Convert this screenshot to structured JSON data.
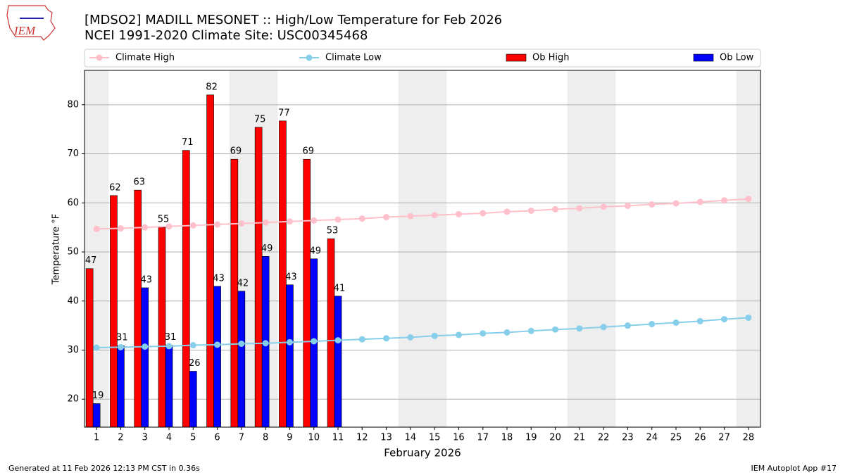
{
  "logo_text": "IEM",
  "footer_left": "Generated at 11 Feb 2026 12:13 PM CST in 0.36s",
  "footer_right": "IEM Autoplot App #17",
  "chart_data": {
    "type": "bar",
    "title": "[MDSO2] MADILL MESONET :: High/Low Temperature for Feb 2026",
    "subtitle": "NCEI 1991-2020 Climate Site: USC00345468",
    "x_label": "February 2026",
    "y_label": "Temperature °F",
    "categories": [
      "1",
      "2",
      "3",
      "4",
      "5",
      "6",
      "7",
      "8",
      "9",
      "10",
      "11",
      "12",
      "13",
      "14",
      "15",
      "16",
      "17",
      "18",
      "19",
      "20",
      "21",
      "22",
      "23",
      "24",
      "25",
      "26",
      "27",
      "28"
    ],
    "shaded_days": [
      "1",
      "7",
      "8",
      "14",
      "15",
      "21",
      "22",
      "28"
    ],
    "ylim": [
      14.3,
      87
    ],
    "yticks": [
      20,
      30,
      40,
      50,
      60,
      70,
      80
    ],
    "grid": true,
    "legend": "top",
    "series": [
      {
        "name": "Climate High",
        "type": "line",
        "color": "#ffc0cb",
        "values": [
          54.7,
          54.8,
          55.0,
          55.2,
          55.4,
          55.6,
          55.8,
          56.0,
          56.2,
          56.4,
          56.6,
          56.8,
          57.1,
          57.3,
          57.5,
          57.7,
          57.9,
          58.2,
          58.4,
          58.7,
          58.9,
          59.2,
          59.4,
          59.7,
          59.9,
          60.2,
          60.5,
          60.8
        ]
      },
      {
        "name": "Climate Low",
        "type": "line",
        "color": "#87ceeb",
        "values": [
          30.5,
          30.6,
          30.7,
          30.8,
          31.0,
          31.1,
          31.3,
          31.4,
          31.6,
          31.8,
          32.0,
          32.2,
          32.4,
          32.6,
          32.9,
          33.1,
          33.4,
          33.6,
          33.9,
          34.2,
          34.4,
          34.7,
          35.0,
          35.3,
          35.6,
          35.9,
          36.3,
          36.6
        ]
      },
      {
        "name": "Ob High",
        "type": "bar",
        "color": "#ff0000",
        "values": [
          46.6,
          61.5,
          62.6,
          55.0,
          70.7,
          82.0,
          68.9,
          75.4,
          76.7,
          68.9,
          52.7,
          null,
          null,
          null,
          null,
          null,
          null,
          null,
          null,
          null,
          null,
          null,
          null,
          null,
          null,
          null,
          null,
          null
        ],
        "value_labels": [
          "47",
          "62",
          "63",
          "55",
          "71",
          "82",
          "69",
          "75",
          "77",
          "69",
          "53",
          null,
          null,
          null,
          null,
          null,
          null,
          null,
          null,
          null,
          null,
          null,
          null,
          null,
          null,
          null,
          null,
          null
        ]
      },
      {
        "name": "Ob Low",
        "type": "bar",
        "color": "#0000ff",
        "values": [
          19.1,
          30.9,
          42.7,
          31.0,
          25.7,
          43.0,
          42.0,
          49.1,
          43.3,
          48.6,
          41.0,
          null,
          null,
          null,
          null,
          null,
          null,
          null,
          null,
          null,
          null,
          null,
          null,
          null,
          null,
          null,
          null,
          null
        ],
        "value_labels": [
          "19",
          "31",
          "43",
          "31",
          "26",
          "43",
          "42",
          "49",
          "43",
          "49",
          "41",
          null,
          null,
          null,
          null,
          null,
          null,
          null,
          null,
          null,
          null,
          null,
          null,
          null,
          null,
          null,
          null,
          null
        ]
      }
    ]
  }
}
